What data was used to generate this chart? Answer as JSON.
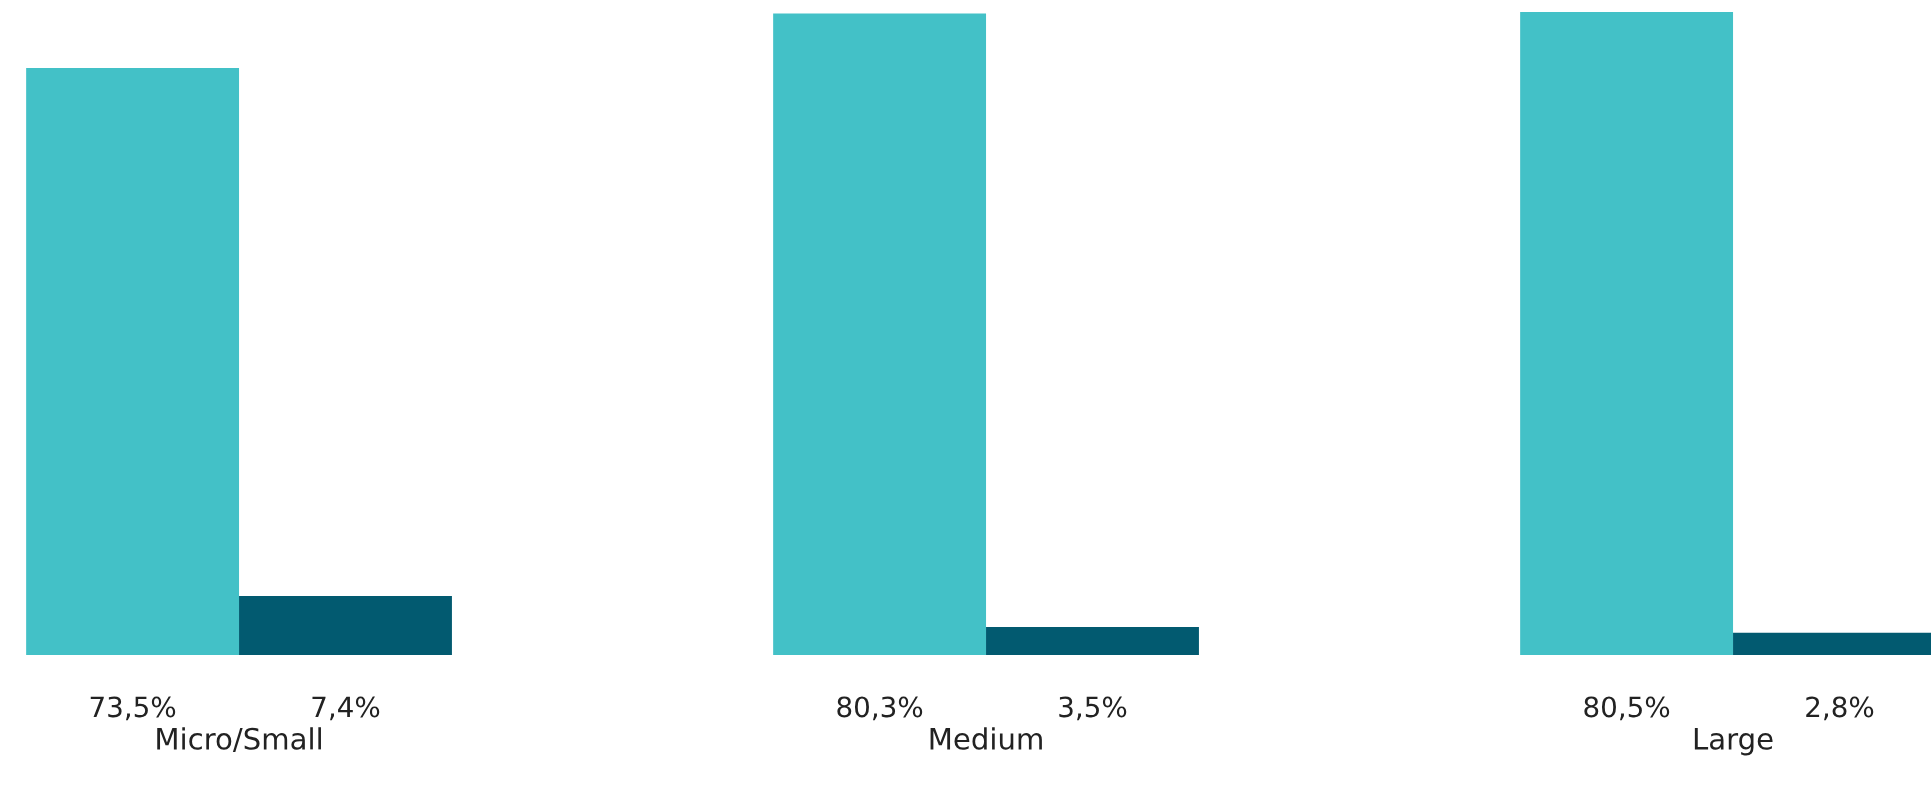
{
  "chart_data": {
    "type": "bar",
    "categories": [
      "Micro/Small",
      "Medium",
      "Large"
    ],
    "series": [
      {
        "color": "#43c1c7",
        "values": [
          73.5,
          80.3,
          80.5
        ],
        "value_labels": [
          "73,5%",
          "80,3%",
          "80,5%"
        ]
      },
      {
        "color": "#025a70",
        "values": [
          7.4,
          3.5,
          2.8
        ],
        "value_labels": [
          "7,4%",
          "3,5%",
          "2,8%"
        ]
      }
    ],
    "legend": false,
    "grid": false
  }
}
